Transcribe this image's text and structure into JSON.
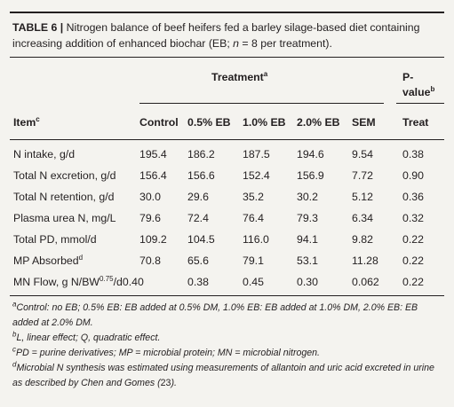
{
  "caption": {
    "label": "TABLE 6 |",
    "part1": "Nitrogen balance of beef heifers fed a barley silage-based diet containing increasing addition of enhanced biochar (EB; ",
    "n_var": "n",
    "part2": " = 8 per treatment)."
  },
  "headers": {
    "treatment_group": "Treatment",
    "treatment_sup": "a",
    "p_line1": "P-",
    "p_line2": "value",
    "p_sup": "b",
    "item": "Item",
    "item_sup": "c",
    "columns": [
      "Control",
      "0.5% EB",
      "1.0% EB",
      "2.0% EB",
      "SEM",
      "Treat"
    ]
  },
  "rows": [
    {
      "item": "N intake, g/d",
      "values": [
        "195.4",
        "186.2",
        "187.5",
        "194.6",
        "9.54",
        "0.38"
      ]
    },
    {
      "item": "Total N excretion, g/d",
      "values": [
        "156.4",
        "156.6",
        "152.4",
        "156.9",
        "7.72",
        "0.90"
      ]
    },
    {
      "item": "Total N retention, g/d",
      "values": [
        "30.0",
        "29.6",
        "35.2",
        "30.2",
        "5.12",
        "0.36"
      ]
    },
    {
      "item": "Plasma urea N, mg/L",
      "values": [
        "79.6",
        "72.4",
        "76.4",
        "79.3",
        "6.34",
        "0.32"
      ]
    },
    {
      "item": "Total PD, mmol/d",
      "values": [
        "109.2",
        "104.5",
        "116.0",
        "94.1",
        "9.82",
        "0.22"
      ]
    },
    {
      "item": "MP Absorbed",
      "item_sup": "d",
      "values": [
        "70.8",
        "65.6",
        "79.1",
        "53.1",
        "11.28",
        "0.22"
      ]
    },
    {
      "item_pre": "MN Flow, g N/BW",
      "item_sup": "0.75",
      "item_post": "/d0.40",
      "values": [
        "",
        "0.38",
        "0.45",
        "0.30",
        "0.062",
        "0.22"
      ]
    }
  ],
  "footnotes": [
    {
      "mark": "a",
      "text": "Control: no EB; 0.5% EB: EB added at 0.5% DM, 1.0% EB: EB added at 1.0% DM, 2.0% EB: EB added at 2.0% DM."
    },
    {
      "mark": "b",
      "text": "L, linear effect; Q, quadratic effect."
    },
    {
      "mark": "c",
      "text": "PD = purine derivatives; MP = microbial protein; MN = microbial nitrogen."
    },
    {
      "mark": "d",
      "text": "Microbial N synthesis was estimated using measurements of allantoin and uric acid excreted in urine as described by Chen and Gomes (",
      "ref_num": "23",
      "tail": ")."
    }
  ]
}
